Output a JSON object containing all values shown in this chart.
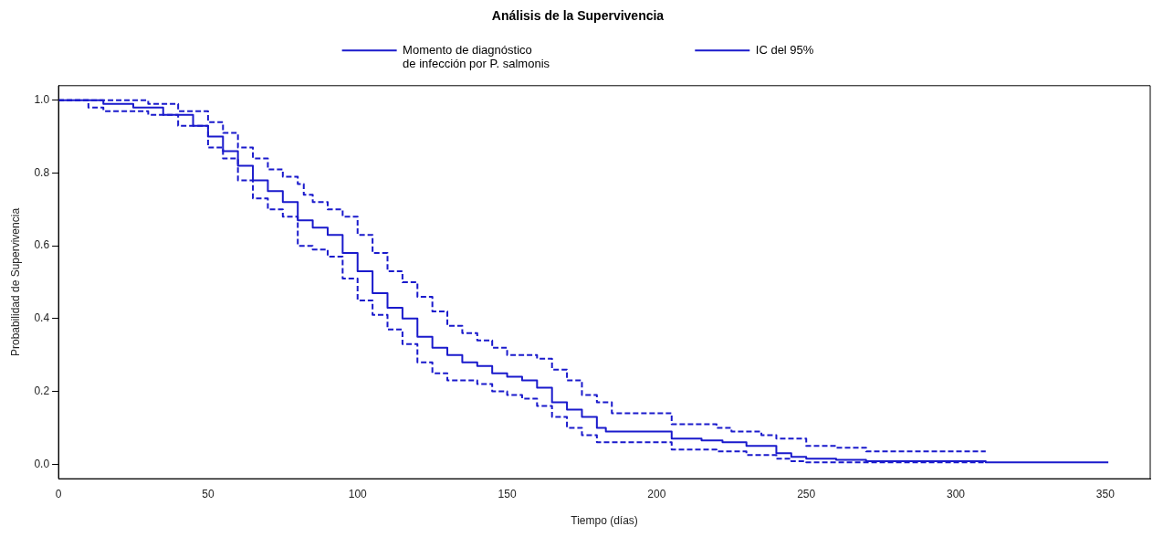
{
  "chart_data": {
    "type": "step",
    "title": "Análisis de la Supervivencia",
    "xlabel": "Tiempo (días)",
    "ylabel": "Probabilidad de Supervivencia",
    "xlim": [
      0,
      365
    ],
    "ylim": [
      -0.04,
      1.04
    ],
    "xticks": [
      0,
      50,
      100,
      150,
      200,
      250,
      300,
      350
    ],
    "yticks": [
      {
        "value": 0,
        "label": "0.0"
      },
      {
        "value": 0.2,
        "label": "0.2"
      },
      {
        "value": 0.4,
        "label": "0.4"
      },
      {
        "value": 0.6,
        "label": "0.6"
      },
      {
        "value": 0.8,
        "label": "0.8"
      },
      {
        "value": 1,
        "label": "1.0"
      }
    ],
    "grid": false,
    "legend": "top",
    "marker": "none",
    "series": [
      {
        "name": "Momento de diagnóstico\nde infección por P. salmonis",
        "color": "#1a1acc",
        "line_style": "solid",
        "x": [
          0,
          10,
          15,
          25,
          35,
          45,
          50,
          55,
          60,
          65,
          70,
          75,
          80,
          85,
          90,
          95,
          100,
          105,
          110,
          115,
          120,
          125,
          130,
          135,
          140,
          145,
          150,
          155,
          160,
          165,
          170,
          175,
          180,
          183,
          205,
          215,
          222,
          230,
          240,
          245,
          250,
          260,
          270,
          310,
          351
        ],
        "values": [
          1.0,
          1.0,
          0.99,
          0.98,
          0.96,
          0.93,
          0.9,
          0.86,
          0.82,
          0.78,
          0.75,
          0.72,
          0.67,
          0.65,
          0.63,
          0.58,
          0.53,
          0.47,
          0.43,
          0.4,
          0.35,
          0.32,
          0.3,
          0.28,
          0.27,
          0.25,
          0.24,
          0.23,
          0.21,
          0.17,
          0.15,
          0.13,
          0.1,
          0.09,
          0.07,
          0.065,
          0.06,
          0.05,
          0.03,
          0.02,
          0.015,
          0.012,
          0.008,
          0.005,
          0.005
        ]
      },
      {
        "name": "IC del 95%",
        "color": "#1a1acc",
        "line_style": "dashed",
        "x": [
          0,
          20,
          30,
          40,
          50,
          55,
          60,
          65,
          70,
          75,
          80,
          82,
          85,
          90,
          95,
          100,
          105,
          110,
          115,
          120,
          125,
          130,
          135,
          140,
          145,
          150,
          160,
          165,
          170,
          175,
          180,
          185,
          204,
          205,
          220,
          225,
          235,
          240,
          250,
          260,
          270,
          310
        ],
        "values": [
          1.0,
          1.0,
          0.99,
          0.97,
          0.94,
          0.91,
          0.87,
          0.84,
          0.81,
          0.79,
          0.77,
          0.74,
          0.72,
          0.7,
          0.68,
          0.63,
          0.58,
          0.53,
          0.5,
          0.46,
          0.42,
          0.38,
          0.36,
          0.34,
          0.32,
          0.3,
          0.29,
          0.26,
          0.23,
          0.19,
          0.17,
          0.14,
          0.14,
          0.11,
          0.1,
          0.09,
          0.08,
          0.07,
          0.05,
          0.045,
          0.035,
          0.035
        ]
      },
      {
        "color": "#1a1acc",
        "line_style": "dashed",
        "x": [
          0,
          10,
          15,
          30,
          40,
          50,
          55,
          60,
          65,
          70,
          75,
          80,
          85,
          90,
          95,
          100,
          105,
          110,
          115,
          120,
          125,
          130,
          140,
          145,
          150,
          155,
          160,
          165,
          170,
          175,
          180,
          185,
          205,
          220,
          230,
          240,
          245,
          250,
          310
        ],
        "values": [
          1.0,
          0.98,
          0.97,
          0.96,
          0.93,
          0.87,
          0.84,
          0.78,
          0.73,
          0.7,
          0.68,
          0.6,
          0.59,
          0.57,
          0.51,
          0.45,
          0.41,
          0.37,
          0.33,
          0.28,
          0.25,
          0.23,
          0.22,
          0.2,
          0.19,
          0.18,
          0.16,
          0.13,
          0.1,
          0.08,
          0.06,
          0.06,
          0.04,
          0.035,
          0.025,
          0.015,
          0.008,
          0.005,
          0.005
        ]
      }
    ]
  }
}
